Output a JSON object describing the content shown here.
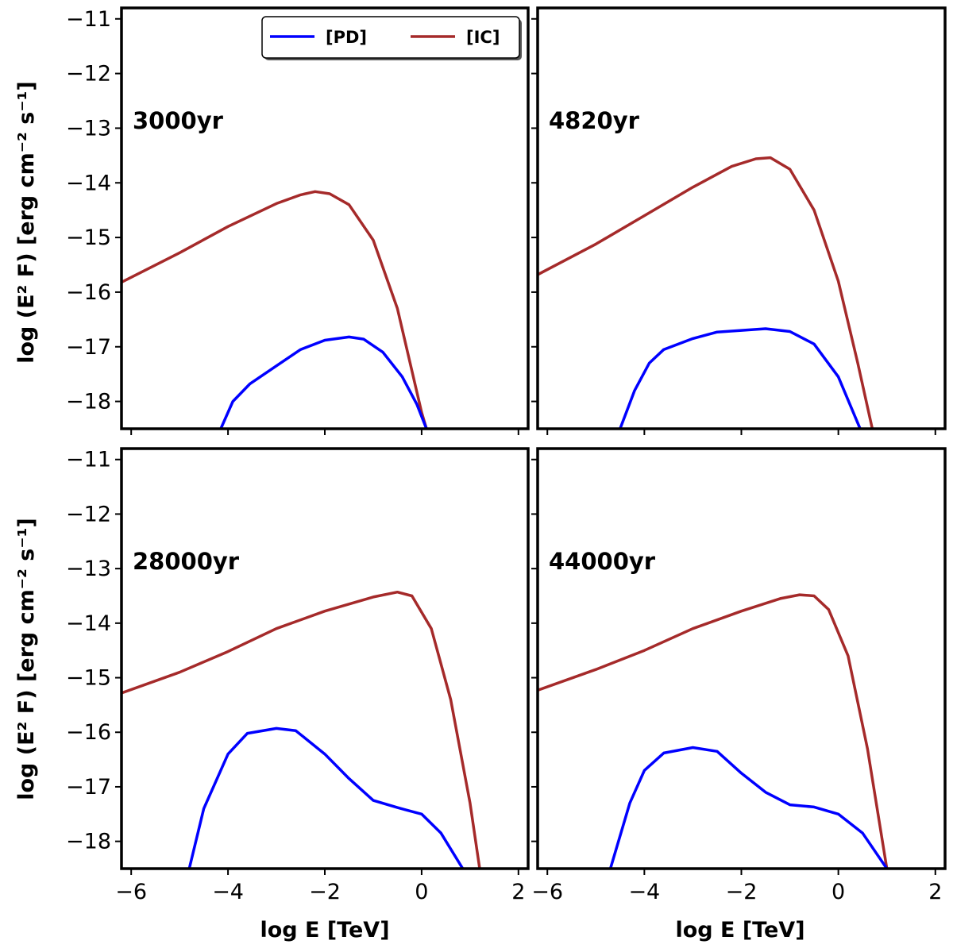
{
  "chart_data": {
    "type": "line",
    "layout": "2x2 grid, shared axes",
    "xlabel": "log E [TeV]",
    "ylabel": "log (E² F) [erg cm⁻² s⁻¹]",
    "xlim": [
      -6.2,
      2.2
    ],
    "ylim": [
      -18.5,
      -10.8
    ],
    "xticks": [
      -6,
      -4,
      -2,
      0,
      2
    ],
    "yticks": [
      -11,
      -12,
      -13,
      -14,
      -15,
      -16,
      -17,
      -18
    ],
    "legend": {
      "placement": "top-right of first panel",
      "entries": [
        {
          "label": "[PD]",
          "color": "#0000ff"
        },
        {
          "label": "[IC]",
          "color": "#a52a2a"
        }
      ]
    },
    "panels": [
      {
        "label": "3000yr",
        "series": [
          {
            "name": "[IC]",
            "color": "#a52a2a",
            "x": [
              -6.2,
              -5.0,
              -4.0,
              -3.0,
              -2.5,
              -2.2,
              -1.9,
              -1.5,
              -1.0,
              -0.5,
              0.0,
              0.1
            ],
            "y": [
              -15.82,
              -15.28,
              -14.8,
              -14.38,
              -14.22,
              -14.16,
              -14.2,
              -14.4,
              -15.05,
              -16.3,
              -18.2,
              -18.5
            ]
          },
          {
            "name": "[PD]",
            "color": "#0000ff",
            "x": [
              -4.15,
              -3.9,
              -3.55,
              -3.0,
              -2.5,
              -2.0,
              -1.5,
              -1.2,
              -0.8,
              -0.4,
              -0.1,
              0.1
            ],
            "y": [
              -18.5,
              -18.0,
              -17.68,
              -17.35,
              -17.05,
              -16.88,
              -16.82,
              -16.86,
              -17.1,
              -17.55,
              -18.05,
              -18.5
            ]
          }
        ]
      },
      {
        "label": "4820yr",
        "series": [
          {
            "name": "[IC]",
            "color": "#a52a2a",
            "x": [
              -6.2,
              -5.0,
              -4.0,
              -3.0,
              -2.2,
              -1.7,
              -1.4,
              -1.0,
              -0.5,
              0.0,
              0.4,
              0.7
            ],
            "y": [
              -15.68,
              -15.12,
              -14.6,
              -14.08,
              -13.7,
              -13.56,
              -13.54,
              -13.75,
              -14.5,
              -15.8,
              -17.3,
              -18.5
            ]
          },
          {
            "name": "[PD]",
            "color": "#0000ff",
            "x": [
              -4.5,
              -4.2,
              -3.9,
              -3.6,
              -3.0,
              -2.5,
              -2.0,
              -1.5,
              -1.0,
              -0.5,
              0.0,
              0.45
            ],
            "y": [
              -18.5,
              -17.8,
              -17.3,
              -17.05,
              -16.85,
              -16.73,
              -16.7,
              -16.67,
              -16.72,
              -16.95,
              -17.55,
              -18.5
            ]
          }
        ]
      },
      {
        "label": "28000yr",
        "series": [
          {
            "name": "[IC]",
            "color": "#a52a2a",
            "x": [
              -6.2,
              -5.0,
              -4.0,
              -3.0,
              -2.0,
              -1.0,
              -0.5,
              -0.2,
              0.2,
              0.6,
              1.0,
              1.2
            ],
            "y": [
              -15.28,
              -14.9,
              -14.52,
              -14.1,
              -13.78,
              -13.52,
              -13.43,
              -13.5,
              -14.1,
              -15.4,
              -17.3,
              -18.5
            ]
          },
          {
            "name": "[PD]",
            "color": "#0000ff",
            "x": [
              -4.8,
              -4.5,
              -4.0,
              -3.6,
              -3.0,
              -2.6,
              -2.0,
              -1.5,
              -1.0,
              -0.5,
              0.0,
              0.4,
              0.85
            ],
            "y": [
              -18.5,
              -17.4,
              -16.4,
              -16.02,
              -15.93,
              -15.97,
              -16.4,
              -16.85,
              -17.25,
              -17.38,
              -17.5,
              -17.85,
              -18.5
            ]
          }
        ]
      },
      {
        "label": "44000yr",
        "series": [
          {
            "name": "[IC]",
            "color": "#a52a2a",
            "x": [
              -6.2,
              -5.0,
              -4.0,
              -3.0,
              -2.0,
              -1.2,
              -0.8,
              -0.5,
              -0.2,
              0.2,
              0.6,
              1.0
            ],
            "y": [
              -15.23,
              -14.85,
              -14.5,
              -14.1,
              -13.78,
              -13.55,
              -13.48,
              -13.5,
              -13.75,
              -14.6,
              -16.3,
              -18.5
            ]
          },
          {
            "name": "[PD]",
            "color": "#0000ff",
            "x": [
              -4.7,
              -4.3,
              -4.0,
              -3.6,
              -3.0,
              -2.5,
              -2.0,
              -1.5,
              -1.0,
              -0.5,
              0.0,
              0.5,
              1.0
            ],
            "y": [
              -18.5,
              -17.3,
              -16.7,
              -16.38,
              -16.28,
              -16.35,
              -16.75,
              -17.1,
              -17.33,
              -17.37,
              -17.5,
              -17.85,
              -18.5
            ]
          }
        ]
      }
    ]
  }
}
